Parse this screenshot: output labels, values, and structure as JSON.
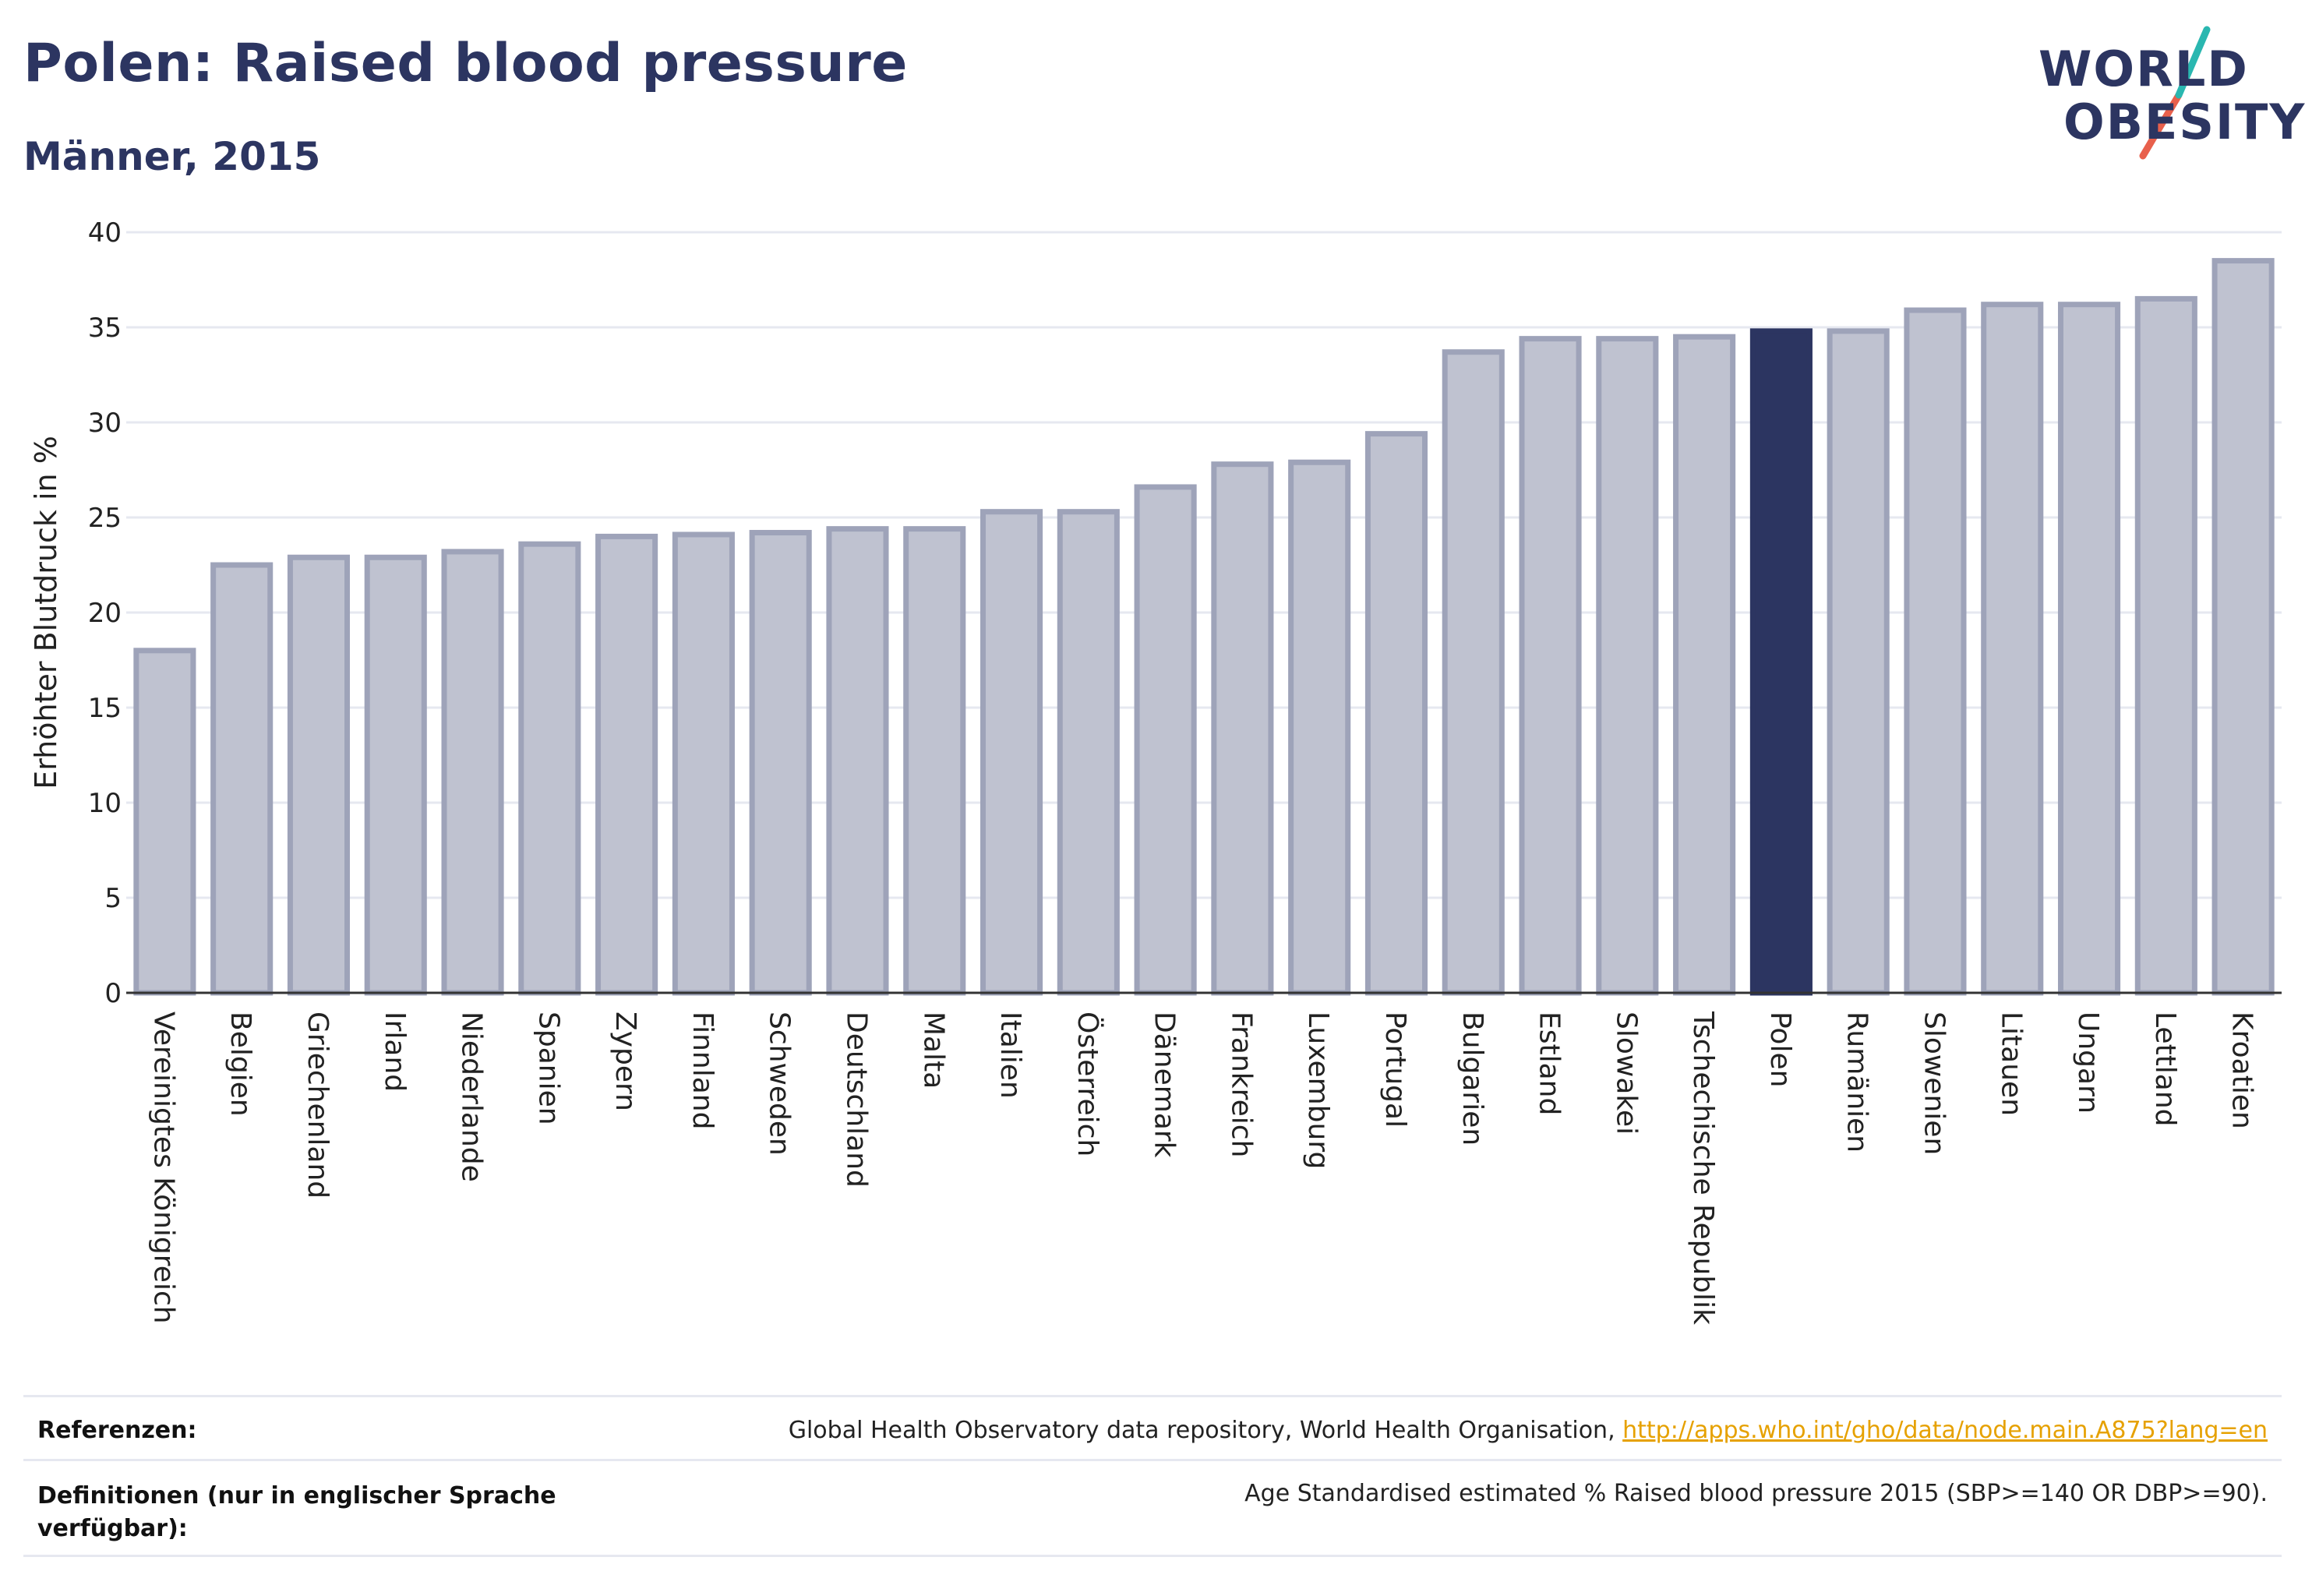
{
  "header": {
    "title": "Polen: Raised blood pressure",
    "subtitle": "Männer, 2015"
  },
  "logo": {
    "line1": "WORLD",
    "line2": "OBESITY",
    "slash_color_top": "#2ab7b0",
    "slash_color_bottom": "#e8604c"
  },
  "colors": {
    "bar_default": "#bfc2d0",
    "bar_border": "#9ea3b9",
    "bar_highlight": "#2c3561",
    "grid": "#e6e8f0",
    "text_dark": "#2c3561"
  },
  "chart_data": {
    "type": "bar",
    "ylabel": "Erhöhter Blutdruck in %",
    "xlabel": "",
    "ylim": [
      0,
      40
    ],
    "yticks": [
      "0",
      "5",
      "10",
      "15",
      "20",
      "25",
      "30",
      "35",
      "40"
    ],
    "grid": true,
    "highlight": "Polen",
    "categories": [
      "Vereinigtes Königreich",
      "Belgien",
      "Griechenland",
      "Irland",
      "Niederlande",
      "Spanien",
      "Zypern",
      "Finnland",
      "Schweden",
      "Deutschland",
      "Malta",
      "Italien",
      "Österreich",
      "Dänemark",
      "Frankreich",
      "Luxemburg",
      "Portugal",
      "Bulgarien",
      "Estland",
      "Slowakei",
      "Tschechische Republik",
      "Polen",
      "Rumänien",
      "Slowenien",
      "Litauen",
      "Ungarn",
      "Lettland",
      "Kroatien"
    ],
    "values": [
      18.0,
      22.5,
      22.9,
      22.9,
      23.2,
      23.6,
      24.0,
      24.1,
      24.2,
      24.4,
      24.4,
      25.3,
      25.3,
      26.6,
      27.8,
      27.9,
      29.4,
      33.7,
      34.4,
      34.4,
      34.5,
      34.8,
      34.8,
      35.9,
      36.2,
      36.2,
      36.5,
      38.5
    ]
  },
  "footer": {
    "references_label": "Referenzen:",
    "references_text": "Global Health Observatory data repository, World Health Organisation, ",
    "references_link": "http://apps.who.int/gho/data/node.main.A875?lang=en",
    "definitions_label_line1": "Definitionen (nur in englischer Sprache",
    "definitions_label_line2": "verfügbar):",
    "definitions_text": "Age Standardised estimated % Raised blood pressure 2015 (SBP>=140 OR DBP>=90)."
  }
}
